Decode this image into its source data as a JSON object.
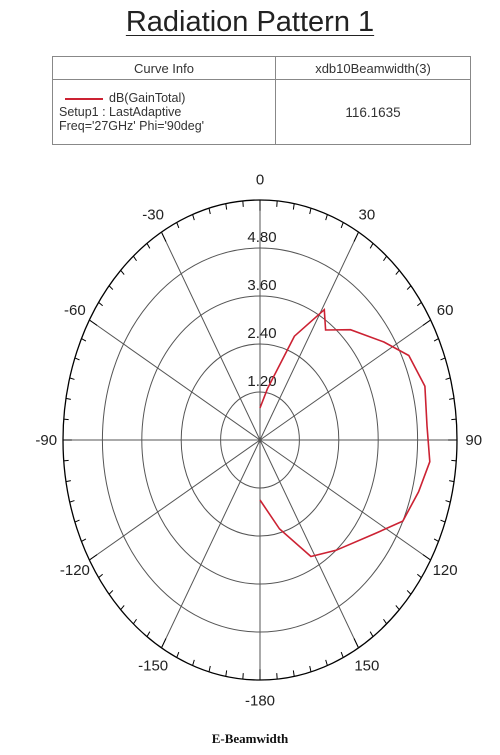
{
  "title": "Radiation Pattern 1",
  "legend": {
    "col1_header": "Curve Info",
    "col2_header": "xdb10Beamwidth(3)",
    "curve_name": "dB(GainTotal)",
    "curve_setup": "Setup1 : LastAdaptive",
    "curve_params": "Freq='27GHz' Phi='90deg'",
    "value": "116.1635"
  },
  "caption": "E-Beamwidth",
  "colors": {
    "curve": "#cc2233",
    "grid": "#555555",
    "axis": "#000000"
  },
  "chart_data": {
    "type": "line",
    "projection": "polar",
    "title": "Radiation Pattern 1",
    "series_label": "dB(GainTotal)",
    "angle_ticks": [
      "0",
      "30",
      "60",
      "90",
      "120",
      "150",
      "-180",
      "-150",
      "-120",
      "-90",
      "-60",
      "-30"
    ],
    "angle_tick_values": [
      0,
      30,
      60,
      90,
      120,
      150,
      180,
      -150,
      -120,
      -90,
      -60,
      -30
    ],
    "radial_ticks": [
      "1.20",
      "2.40",
      "3.60",
      "4.80"
    ],
    "radial_tick_values": [
      1.2,
      2.4,
      3.6,
      4.8
    ],
    "r_min": 0,
    "r_max": 6,
    "grid": true,
    "series": [
      {
        "name": "dB(GainTotal)",
        "theta_deg": [
          0,
          10,
          22,
          31,
          36,
          45,
          57,
          65,
          75,
          86,
          96,
          105,
          115,
          124,
          140,
          152,
          165,
          180
        ],
        "r": [
          0.8,
          1.3,
          2.8,
          3.8,
          3.4,
          3.9,
          4.5,
          5.0,
          5.2,
          5.1,
          5.2,
          5.0,
          4.8,
          4.2,
          3.6,
          3.3,
          2.3,
          1.5
        ]
      }
    ]
  }
}
